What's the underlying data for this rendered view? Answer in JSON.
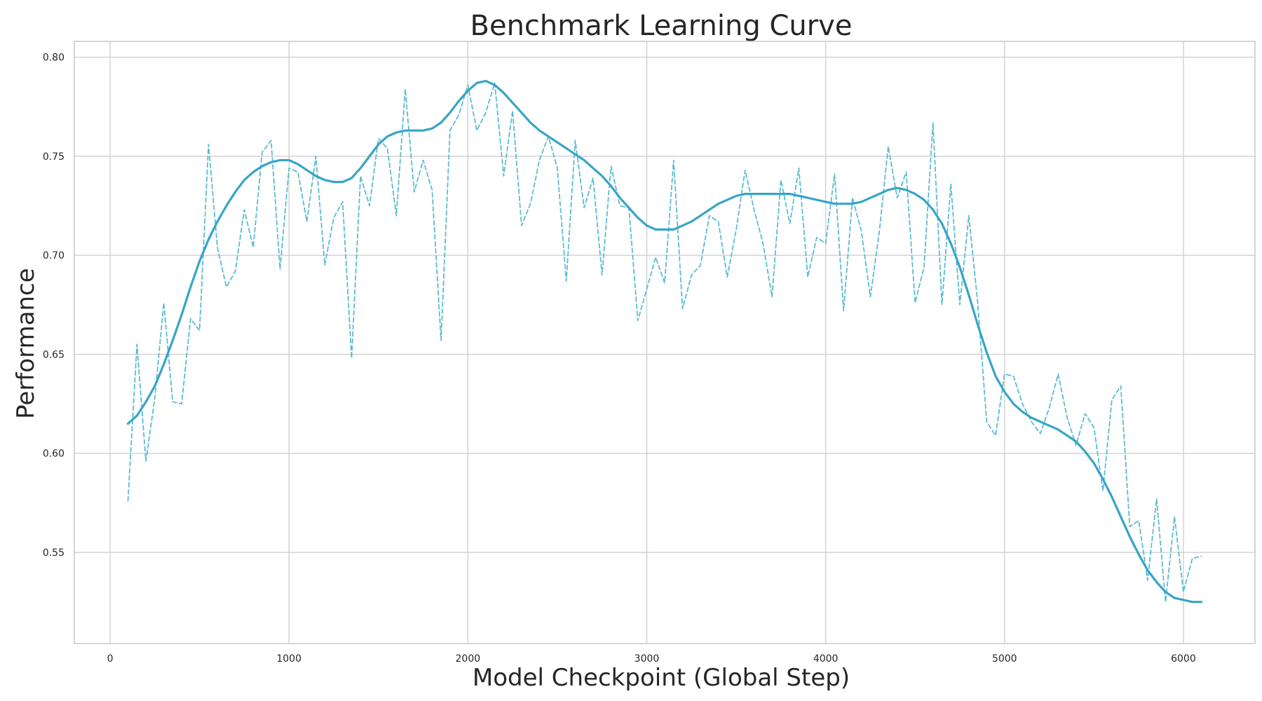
{
  "chart_data": {
    "type": "line",
    "title": "Benchmark Learning Curve",
    "xlabel": "Model Checkpoint (Global Step)",
    "ylabel": "Performance",
    "xlim": [
      -200,
      6400
    ],
    "ylim": [
      0.504,
      0.808
    ],
    "x_ticks": [
      0,
      1000,
      2000,
      3000,
      4000,
      5000,
      6000
    ],
    "y_ticks": [
      0.55,
      0.6,
      0.65,
      0.7,
      0.75,
      0.8
    ],
    "x_tick_labels": [
      "0",
      "1000",
      "2000",
      "3000",
      "4000",
      "5000",
      "6000"
    ],
    "y_tick_labels": [
      "0.55",
      "0.60",
      "0.65",
      "0.70",
      "0.75",
      "0.80"
    ],
    "grid": true,
    "series": [
      {
        "style": "dashed",
        "color": "#5bbcd2",
        "x": [
          100,
          150,
          200,
          250,
          300,
          350,
          400,
          450,
          500,
          550,
          600,
          650,
          700,
          750,
          800,
          850,
          900,
          950,
          1000,
          1050,
          1100,
          1150,
          1200,
          1250,
          1300,
          1350,
          1400,
          1450,
          1500,
          1550,
          1600,
          1650,
          1700,
          1750,
          1800,
          1850,
          1900,
          1950,
          2000,
          2050,
          2100,
          2150,
          2200,
          2250,
          2300,
          2350,
          2400,
          2450,
          2500,
          2550,
          2600,
          2650,
          2700,
          2750,
          2800,
          2850,
          2900,
          2950,
          3000,
          3050,
          3100,
          3150,
          3200,
          3250,
          3300,
          3350,
          3400,
          3450,
          3500,
          3550,
          3600,
          3650,
          3700,
          3750,
          3800,
          3850,
          3900,
          3950,
          4000,
          4050,
          4100,
          4150,
          4200,
          4250,
          4300,
          4350,
          4400,
          4450,
          4500,
          4550,
          4600,
          4650,
          4700,
          4750,
          4800,
          4850,
          4900,
          4950,
          5000,
          5050,
          5100,
          5150,
          5200,
          5250,
          5300,
          5350,
          5400,
          5450,
          5500,
          5550,
          5600,
          5650,
          5700,
          5750,
          5800,
          5850,
          5900,
          5950,
          6000,
          6050,
          6100
        ],
        "y": [
          0.576,
          0.655,
          0.596,
          0.628,
          0.676,
          0.626,
          0.625,
          0.668,
          0.662,
          0.756,
          0.704,
          0.684,
          0.692,
          0.723,
          0.704,
          0.752,
          0.758,
          0.693,
          0.744,
          0.742,
          0.717,
          0.75,
          0.695,
          0.719,
          0.727,
          0.648,
          0.74,
          0.725,
          0.759,
          0.754,
          0.72,
          0.784,
          0.732,
          0.748,
          0.733,
          0.657,
          0.763,
          0.771,
          0.786,
          0.763,
          0.772,
          0.787,
          0.74,
          0.773,
          0.715,
          0.726,
          0.748,
          0.76,
          0.744,
          0.687,
          0.758,
          0.724,
          0.739,
          0.69,
          0.745,
          0.725,
          0.724,
          0.667,
          0.683,
          0.699,
          0.686,
          0.748,
          0.673,
          0.69,
          0.695,
          0.72,
          0.717,
          0.689,
          0.713,
          0.743,
          0.723,
          0.706,
          0.679,
          0.738,
          0.716,
          0.744,
          0.689,
          0.709,
          0.706,
          0.741,
          0.672,
          0.729,
          0.712,
          0.679,
          0.712,
          0.755,
          0.729,
          0.742,
          0.676,
          0.694,
          0.767,
          0.675,
          0.736,
          0.675,
          0.72,
          0.676,
          0.616,
          0.609,
          0.64,
          0.639,
          0.625,
          0.616,
          0.61,
          0.623,
          0.64,
          0.618,
          0.604,
          0.62,
          0.613,
          0.581,
          0.627,
          0.634,
          0.563,
          0.566,
          0.536,
          0.577,
          0.525,
          0.568,
          0.53,
          0.547,
          0.548
        ]
      },
      {
        "style": "solid",
        "color": "#36a5c6",
        "x": [
          100,
          150,
          200,
          250,
          300,
          350,
          400,
          450,
          500,
          550,
          600,
          650,
          700,
          750,
          800,
          850,
          900,
          950,
          1000,
          1050,
          1100,
          1150,
          1200,
          1250,
          1300,
          1350,
          1400,
          1450,
          1500,
          1550,
          1600,
          1650,
          1700,
          1750,
          1800,
          1850,
          1900,
          1950,
          2000,
          2050,
          2100,
          2150,
          2200,
          2250,
          2300,
          2350,
          2400,
          2450,
          2500,
          2550,
          2600,
          2650,
          2700,
          2750,
          2800,
          2850,
          2900,
          2950,
          3000,
          3050,
          3100,
          3150,
          3200,
          3250,
          3300,
          3350,
          3400,
          3450,
          3500,
          3550,
          3600,
          3650,
          3700,
          3750,
          3800,
          3850,
          3900,
          3950,
          4000,
          4050,
          4100,
          4150,
          4200,
          4250,
          4300,
          4350,
          4400,
          4450,
          4500,
          4550,
          4600,
          4650,
          4700,
          4750,
          4800,
          4850,
          4900,
          4950,
          5000,
          5050,
          5100,
          5150,
          5200,
          5250,
          5300,
          5350,
          5400,
          5450,
          5500,
          5550,
          5600,
          5650,
          5700,
          5750,
          5800,
          5850,
          5900,
          5950,
          6000,
          6050,
          6100
        ],
        "y": [
          0.615,
          0.619,
          0.626,
          0.634,
          0.645,
          0.657,
          0.67,
          0.684,
          0.697,
          0.708,
          0.717,
          0.725,
          0.732,
          0.738,
          0.742,
          0.745,
          0.747,
          0.748,
          0.748,
          0.746,
          0.743,
          0.74,
          0.738,
          0.737,
          0.737,
          0.739,
          0.744,
          0.75,
          0.756,
          0.76,
          0.762,
          0.763,
          0.763,
          0.763,
          0.764,
          0.767,
          0.772,
          0.778,
          0.783,
          0.787,
          0.788,
          0.786,
          0.782,
          0.777,
          0.772,
          0.767,
          0.763,
          0.76,
          0.757,
          0.754,
          0.751,
          0.748,
          0.744,
          0.74,
          0.735,
          0.729,
          0.724,
          0.719,
          0.715,
          0.713,
          0.713,
          0.713,
          0.715,
          0.717,
          0.72,
          0.723,
          0.726,
          0.728,
          0.73,
          0.731,
          0.731,
          0.731,
          0.731,
          0.731,
          0.731,
          0.73,
          0.729,
          0.728,
          0.727,
          0.726,
          0.726,
          0.726,
          0.727,
          0.729,
          0.731,
          0.733,
          0.734,
          0.733,
          0.731,
          0.728,
          0.723,
          0.716,
          0.706,
          0.694,
          0.68,
          0.665,
          0.651,
          0.639,
          0.631,
          0.625,
          0.621,
          0.618,
          0.616,
          0.614,
          0.612,
          0.609,
          0.606,
          0.601,
          0.595,
          0.587,
          0.578,
          0.568,
          0.558,
          0.549,
          0.541,
          0.535,
          0.53,
          0.527,
          0.526,
          0.525,
          0.525
        ]
      }
    ]
  }
}
